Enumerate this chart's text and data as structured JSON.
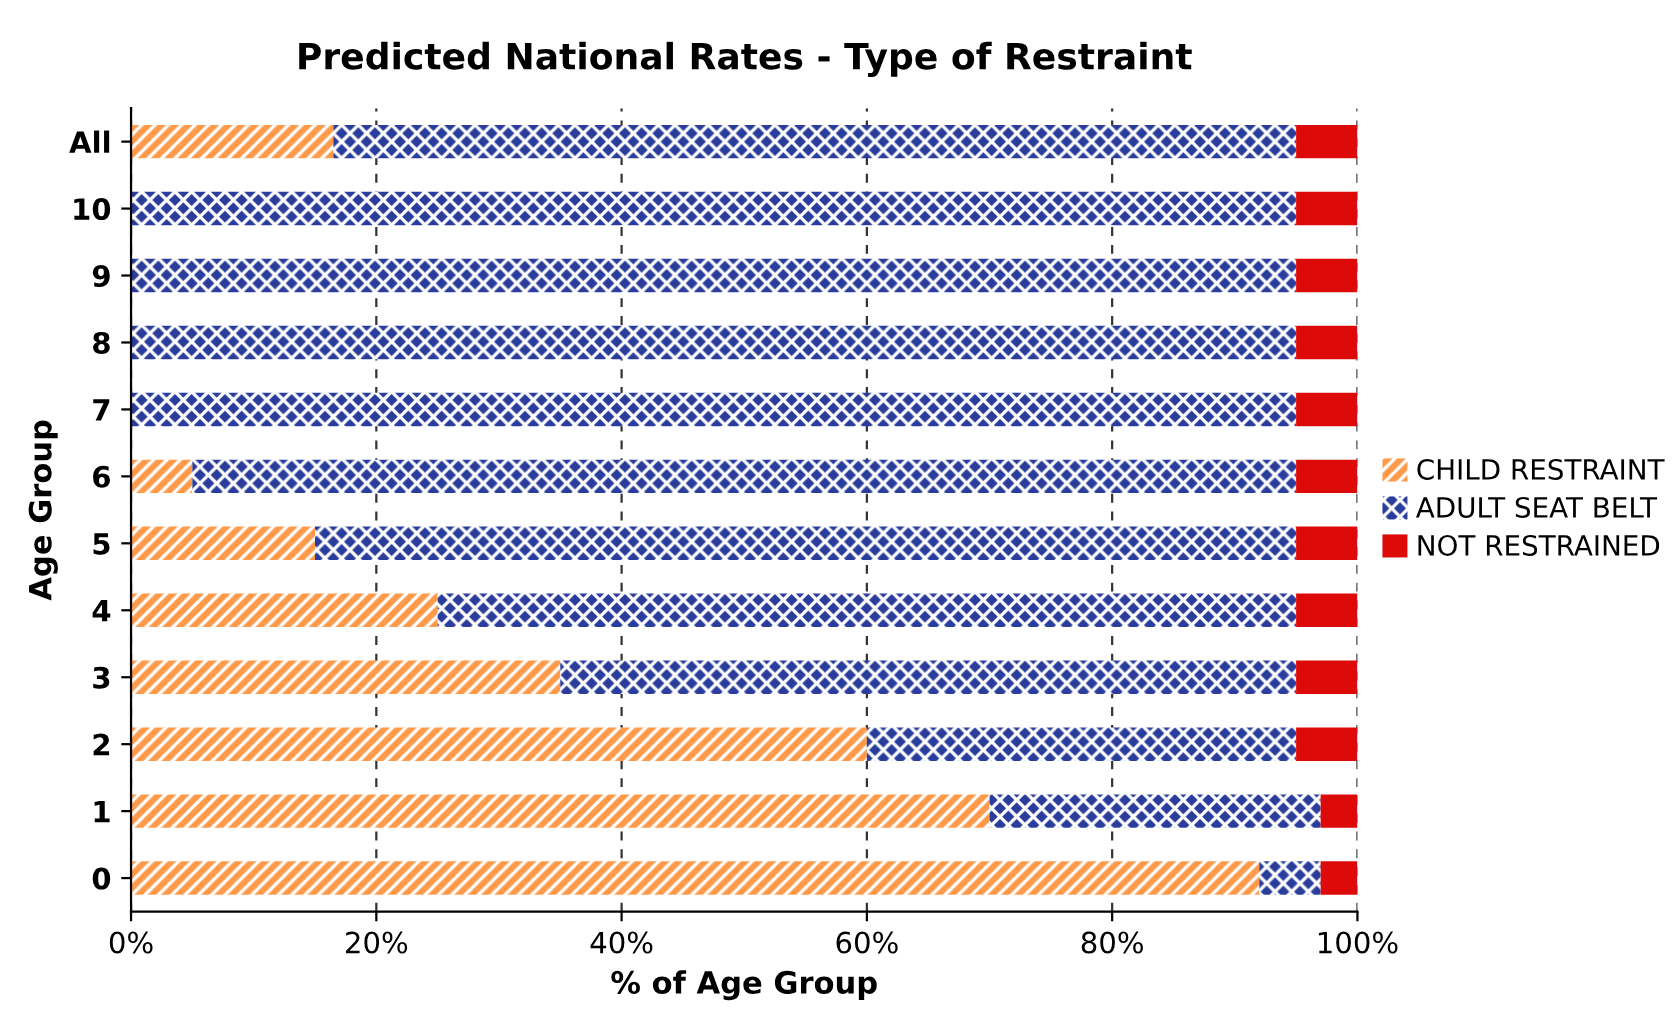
{
  "chart_data": {
    "type": "bar",
    "orientation": "horizontal",
    "stacked": true,
    "title": "Predicted National Rates - Type of Restraint",
    "xlabel": "% of Age Group",
    "ylabel": "Age Group",
    "categories": [
      "All",
      "10",
      "9",
      "8",
      "7",
      "6",
      "5",
      "4",
      "3",
      "2",
      "1",
      "0"
    ],
    "series": [
      {
        "name": "CHILD RESTRAINT",
        "color": "#ff9a4a",
        "values": [
          16.5,
          0,
          0,
          0,
          0,
          5,
          15,
          25,
          35,
          60,
          70,
          92
        ]
      },
      {
        "name": "ADULT SEAT BELT",
        "color": "#2a3d9c",
        "values": [
          78.5,
          95,
          95,
          95,
          95,
          90,
          80,
          70,
          60,
          35,
          27,
          5
        ]
      },
      {
        "name": "NOT RESTRAINED",
        "color": "#dd0a0a",
        "values": [
          5,
          5,
          5,
          5,
          5,
          5,
          5,
          5,
          5,
          5,
          3,
          3
        ]
      }
    ],
    "xlim": [
      0,
      100
    ],
    "xticks": [
      {
        "value": 0,
        "label": "0%"
      },
      {
        "value": 20,
        "label": "20%"
      },
      {
        "value": 40,
        "label": "40%"
      },
      {
        "value": 60,
        "label": "60%"
      },
      {
        "value": 80,
        "label": "80%"
      },
      {
        "value": 100,
        "label": "100%"
      }
    ],
    "grid": "x",
    "legend": "right"
  }
}
